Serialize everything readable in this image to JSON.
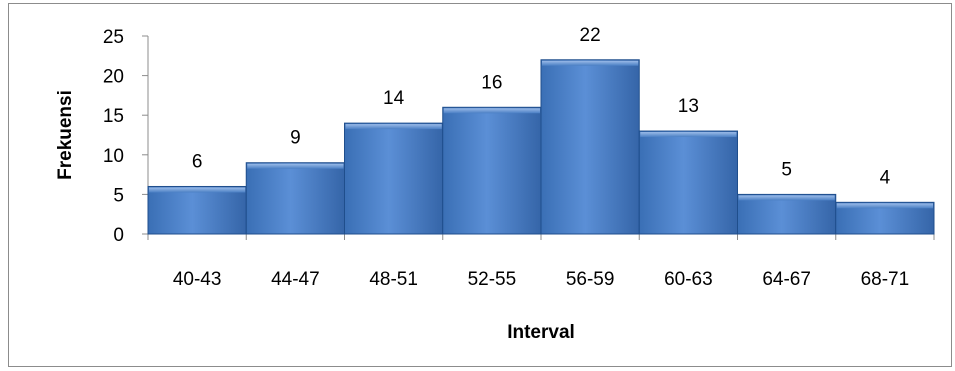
{
  "chart_data": {
    "type": "bar",
    "title": "",
    "xlabel": "Interval",
    "ylabel": "Frekuensi",
    "categories": [
      "40-43",
      "44-47",
      "48-51",
      "52-55",
      "56-59",
      "60-63",
      "64-67",
      "68-71"
    ],
    "series": [
      {
        "values": [
          6,
          9,
          14,
          16,
          22,
          13,
          5,
          4
        ]
      }
    ],
    "ylim": [
      0,
      25
    ],
    "yticks": [
      0,
      5,
      10,
      15,
      20,
      25
    ],
    "grid": false,
    "legend": "none",
    "data_labels": true,
    "bar_color": "#4a7fc4",
    "bar_border_color": "#1f4e8c"
  }
}
